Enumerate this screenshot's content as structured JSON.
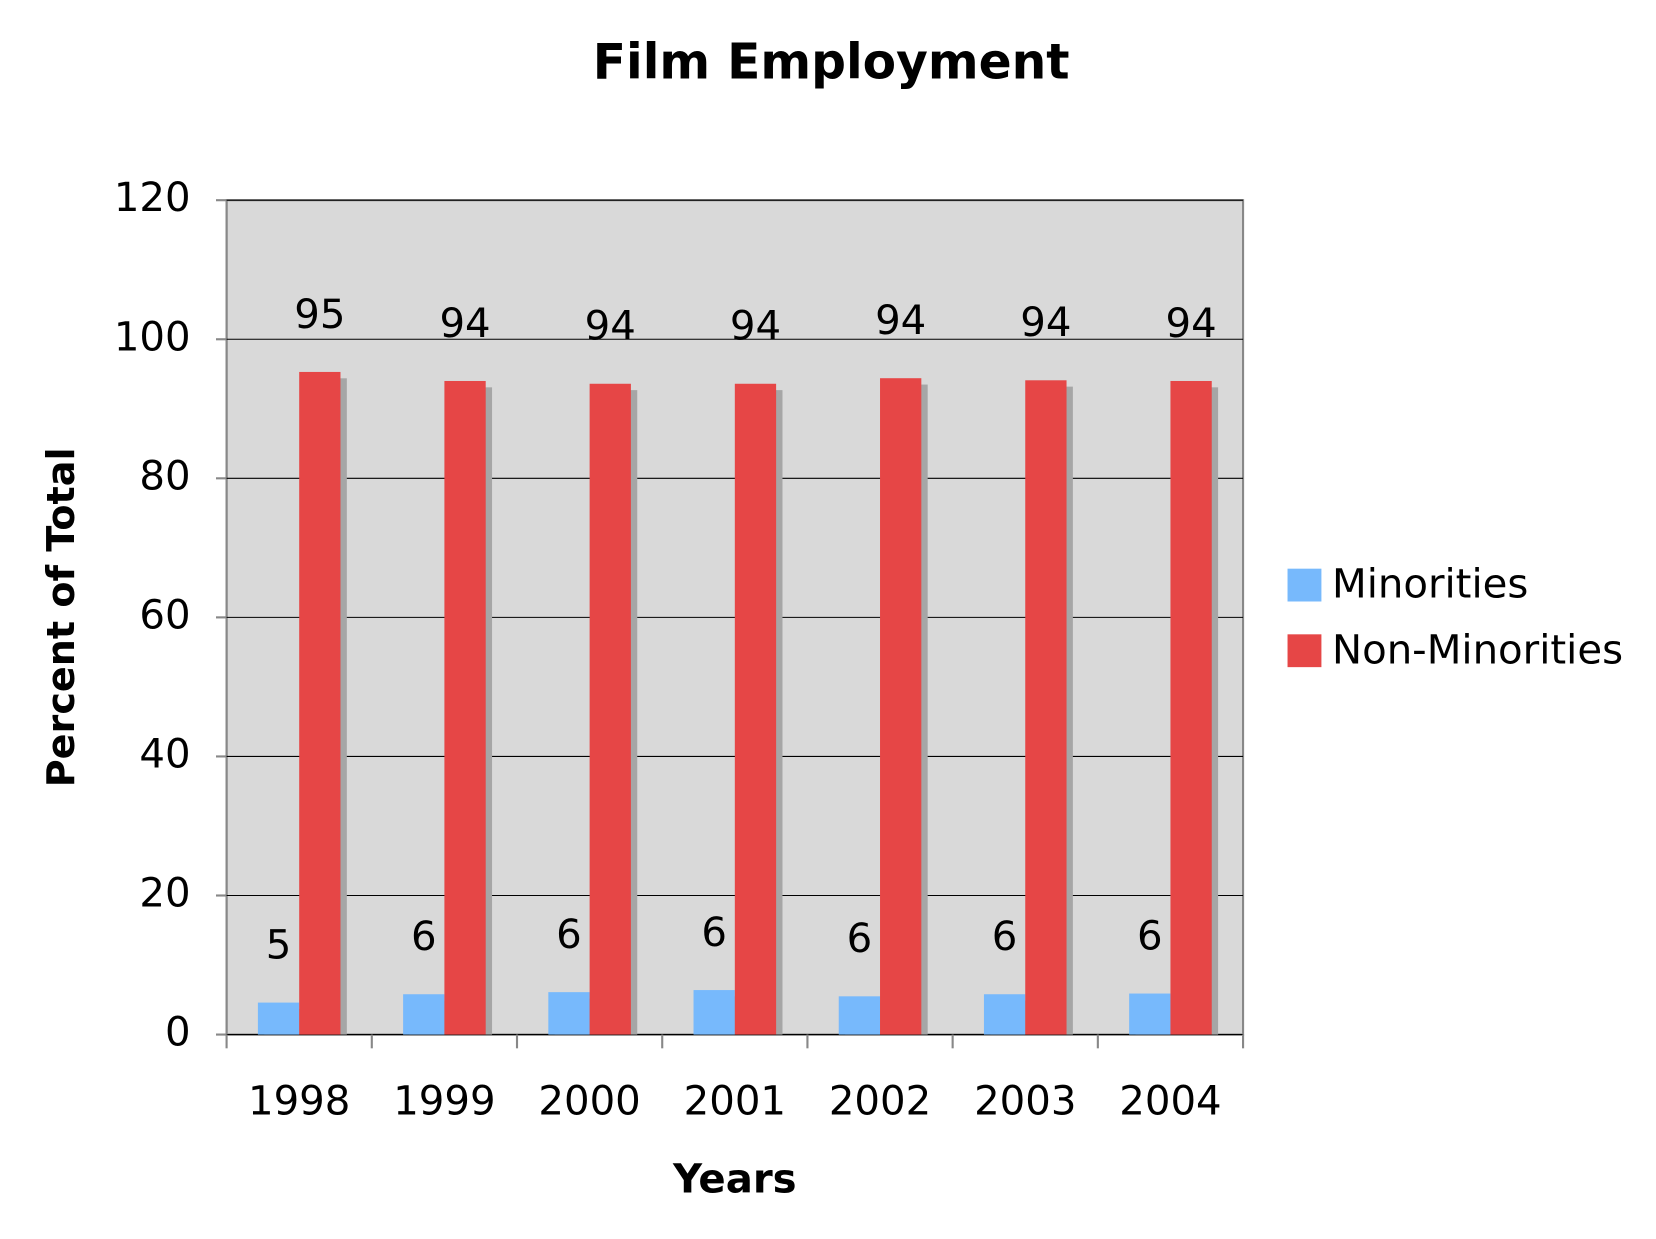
{
  "chart_data": {
    "type": "bar",
    "title": "Film Employment",
    "x_label": "Years",
    "y_label": "Percent of Total",
    "categories": [
      "1998",
      "1999",
      "2000",
      "2001",
      "2002",
      "2003",
      "2004"
    ],
    "series": [
      {
        "name": "Minorities",
        "color": "#77b9fc",
        "values": [
          4.6,
          5.8,
          6.1,
          6.4,
          5.5,
          5.8,
          5.9
        ],
        "value_labels": [
          "5",
          "6",
          "6",
          "6",
          "6",
          "6",
          "6"
        ]
      },
      {
        "name": "Non-Minorities",
        "color": "#e64646",
        "values": [
          95.3,
          94.0,
          93.6,
          93.6,
          94.4,
          94.1,
          94.0
        ],
        "value_labels": [
          "95",
          "94",
          "94",
          "94",
          "94",
          "94",
          "94"
        ]
      }
    ],
    "ylim": [
      0,
      120
    ],
    "yticks": [
      0,
      20,
      40,
      60,
      80,
      100,
      120
    ],
    "grid": true,
    "legend": "right"
  }
}
